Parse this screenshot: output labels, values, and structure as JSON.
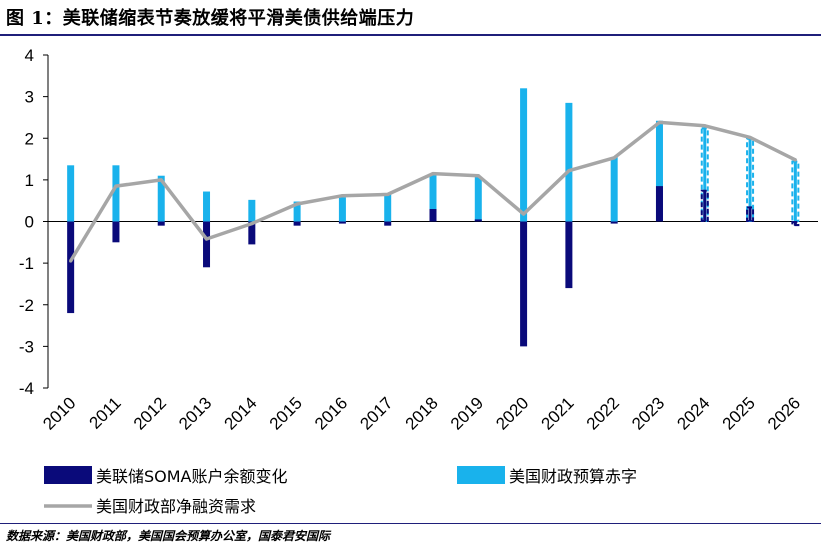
{
  "header": {
    "title": "图 1：美联储缩表节奏放缓将平滑美债供给端压力"
  },
  "footer": {
    "source": "数据来源：美国财政部，美国国会预算办公室，国泰君安国际"
  },
  "colors": {
    "soma": "#0a0a7a",
    "deficit": "#19b2ec",
    "net": "#a6a6a6"
  },
  "chart_data": {
    "type": "bar",
    "title": "",
    "xlabel": "",
    "ylabel": "",
    "ylim": [
      -4,
      4
    ],
    "yticks": [
      "4",
      "3",
      "2",
      "1",
      "0",
      "-1",
      "-2",
      "-3",
      "-4"
    ],
    "categories": [
      "2010",
      "2011",
      "2012",
      "2013",
      "2014",
      "2015",
      "2016",
      "2017",
      "2018",
      "2019",
      "2020",
      "2021",
      "2022",
      "2023",
      "2024",
      "2025",
      "2026"
    ],
    "forecast_from": "2024",
    "series": [
      {
        "name": "美联储SOMA账户余额变化",
        "kind": "bar",
        "values": [
          -2.2,
          -0.5,
          -0.1,
          -1.1,
          -0.55,
          -0.1,
          -0.05,
          -0.1,
          0.3,
          0.05,
          -3.0,
          -1.6,
          -0.05,
          0.85,
          0.75,
          0.35,
          -0.1
        ]
      },
      {
        "name": "美国财政预算赤字",
        "kind": "bar",
        "values": [
          1.35,
          1.35,
          1.1,
          0.72,
          0.52,
          0.48,
          0.58,
          0.65,
          1.15,
          1.08,
          3.2,
          2.85,
          1.55,
          2.42,
          2.25,
          2.0,
          1.45
        ]
      },
      {
        "name": "美国财政部净融资需求",
        "kind": "line",
        "values": [
          -0.95,
          0.85,
          1.0,
          -0.42,
          -0.05,
          0.42,
          0.62,
          0.65,
          1.15,
          1.1,
          0.18,
          1.22,
          1.53,
          2.38,
          2.3,
          2.02,
          1.48
        ]
      }
    ],
    "legend": [
      "美联储SOMA账户余额变化",
      "美国财政预算赤字",
      "美国财政部净融资需求"
    ],
    "legend_position": "bottom"
  }
}
